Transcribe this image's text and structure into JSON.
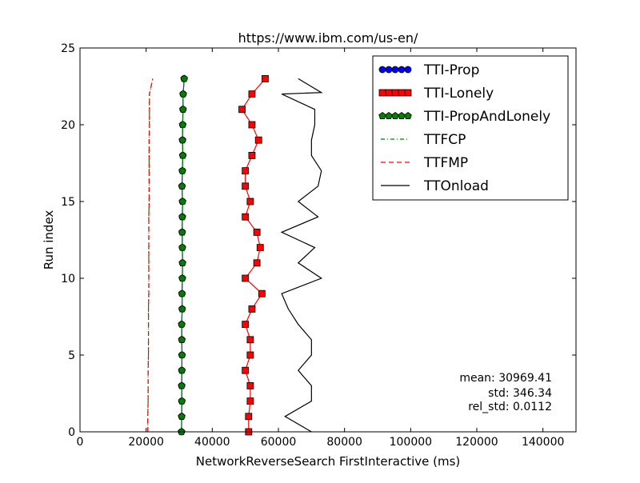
{
  "chart_data": {
    "type": "line",
    "title": "https://www.ibm.com/us-en/",
    "xlabel": "NetworkReverseSearch FirstInteractive (ms)",
    "ylabel": "Run index",
    "xlim": [
      0,
      150000
    ],
    "ylim": [
      0,
      25
    ],
    "xticks": [
      0,
      20000,
      40000,
      60000,
      80000,
      100000,
      120000,
      140000
    ],
    "xtick_labels": [
      "0",
      "20000",
      "40000",
      "60000",
      "80000",
      "100000",
      "120000",
      "140000"
    ],
    "yticks": [
      0,
      5,
      10,
      15,
      20,
      25
    ],
    "ytick_labels": [
      "0",
      "5",
      "10",
      "15",
      "20",
      "25"
    ],
    "grid": false,
    "legend_position": "top-right",
    "y": [
      0,
      1,
      2,
      3,
      4,
      5,
      6,
      7,
      8,
      9,
      10,
      11,
      12,
      13,
      14,
      15,
      16,
      17,
      18,
      19,
      20,
      21,
      22,
      23
    ],
    "series": [
      {
        "name": "TTI-Prop",
        "color": "#0000ff",
        "marker": "circle",
        "x": [
          30700,
          30750,
          30800,
          30750,
          30800,
          30850,
          30800,
          30750,
          30900,
          30850,
          30950,
          31000,
          30950,
          30900,
          30950,
          31000,
          30850,
          30950,
          31100,
          31000,
          31050,
          31150,
          31200,
          31500
        ]
      },
      {
        "name": "TTI-Lonely",
        "color": "#ff0000",
        "marker": "square",
        "x": [
          51000,
          51000,
          51500,
          51500,
          50000,
          51500,
          51500,
          50000,
          52000,
          55000,
          50000,
          53500,
          54500,
          53500,
          50000,
          51500,
          50000,
          50000,
          52000,
          54000,
          52000,
          49000,
          52000,
          56000
        ]
      },
      {
        "name": "TTI-PropAndLonely",
        "color": "#008000",
        "marker": "pentagon",
        "x": [
          30700,
          30750,
          30800,
          30750,
          30800,
          30850,
          30800,
          30750,
          30900,
          30850,
          30950,
          31000,
          30950,
          30900,
          30950,
          31000,
          30850,
          30950,
          31100,
          31000,
          31050,
          31150,
          31200,
          31500
        ]
      },
      {
        "name": "TTFCP",
        "color": "#008000",
        "style": "dashdot",
        "x": [
          20500,
          20500,
          20600,
          20600,
          20600,
          20700,
          20700,
          20700,
          20700,
          20800,
          20800,
          20800,
          20800,
          20800,
          20800,
          20900,
          20900,
          20900,
          20900,
          20900,
          21000,
          21000,
          21000,
          22000
        ]
      },
      {
        "name": "TTFMP",
        "color": "#ff0000",
        "style": "dashed",
        "x": [
          20500,
          20500,
          20600,
          20600,
          20600,
          20700,
          20700,
          20700,
          20700,
          20800,
          20800,
          20800,
          20800,
          20800,
          20800,
          20900,
          20900,
          20900,
          20900,
          20900,
          21000,
          21000,
          21000,
          22000
        ]
      },
      {
        "name": "TTOnload",
        "color": "#000000",
        "style": "solid",
        "x": [
          70000,
          62000,
          70000,
          70000,
          66000,
          70000,
          70000,
          66000,
          63000,
          61000,
          73000,
          66000,
          71000,
          61000,
          72000,
          66000,
          72000,
          73000,
          70000,
          70000,
          71000,
          71000,
          61000,
          73000,
          66000
        ]
      }
    ],
    "ttonload_y": [
      0,
      1,
      2,
      3,
      4,
      5,
      6,
      7,
      8,
      9,
      10,
      11,
      12,
      13,
      14,
      15,
      16,
      17,
      18,
      19,
      20,
      21,
      22,
      22.1,
      23
    ],
    "annotation": [
      "mean: 30969.41",
      "std: 346.34",
      "rel_std: 0.0112"
    ]
  }
}
